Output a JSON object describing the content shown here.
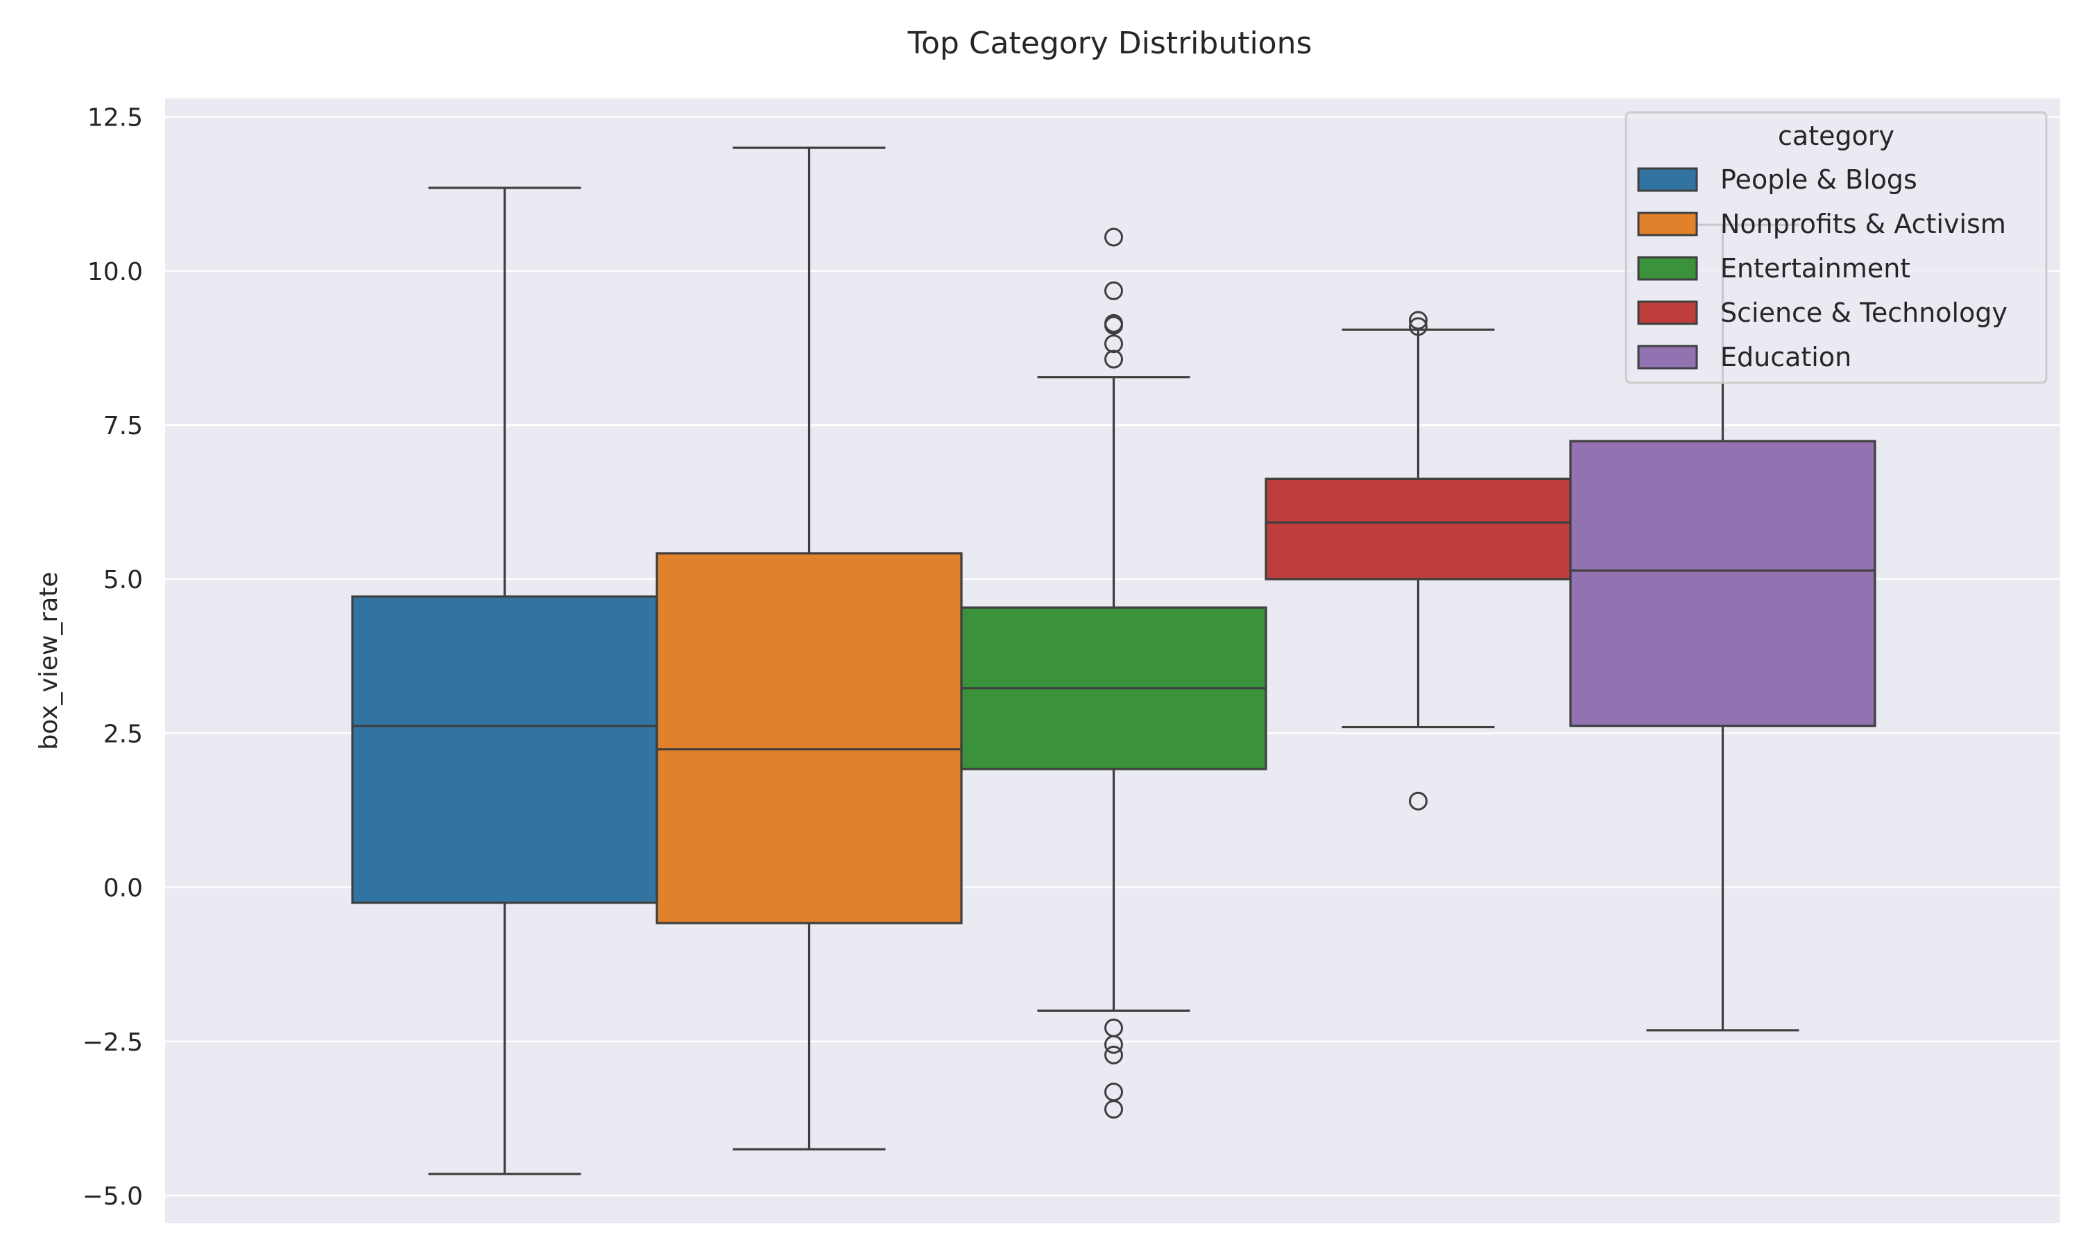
{
  "chart_data": {
    "type": "boxplot",
    "title": "Top Category Distributions",
    "xlabel": "",
    "ylabel": "box_view_rate",
    "ylim": [
      -5.45,
      12.8
    ],
    "yticks": [
      -5.0,
      -2.5,
      0.0,
      2.5,
      5.0,
      7.5,
      10.0,
      12.5
    ],
    "ytick_labels": [
      "−5.0",
      "−2.5",
      "0.0",
      "2.5",
      "5.0",
      "7.5",
      "10.0",
      "12.5"
    ],
    "grid": true,
    "legend": {
      "title": "category",
      "placement": "top-right"
    },
    "series": [
      {
        "name": "People & Blogs",
        "color": "#3274a1",
        "whisker_low": -4.65,
        "q1": -0.25,
        "median": 2.62,
        "q3": 4.72,
        "whisker_high": 11.35,
        "outliers": []
      },
      {
        "name": "Nonprofits & Activism",
        "color": "#e1812c",
        "whisker_low": -4.25,
        "q1": -0.58,
        "median": 2.24,
        "q3": 5.42,
        "whisker_high": 12.0,
        "outliers": []
      },
      {
        "name": "Entertainment",
        "color": "#3a923a",
        "whisker_low": -2.0,
        "q1": 1.92,
        "median": 3.23,
        "q3": 4.54,
        "whisker_high": 8.28,
        "outliers": [
          10.55,
          9.68,
          9.15,
          9.12,
          8.82,
          8.57,
          -2.28,
          -2.55,
          -2.72,
          -3.32,
          -3.6
        ]
      },
      {
        "name": "Science & Technology",
        "color": "#c03d3e",
        "whisker_low": 2.6,
        "q1": 5.0,
        "median": 5.92,
        "q3": 6.63,
        "whisker_high": 9.05,
        "outliers": [
          9.2,
          9.1,
          1.4
        ]
      },
      {
        "name": "Education",
        "color": "#9372b2",
        "whisker_low": -2.32,
        "q1": 2.62,
        "median": 5.14,
        "q3": 7.24,
        "whisker_high": 10.75,
        "outliers": []
      }
    ]
  }
}
